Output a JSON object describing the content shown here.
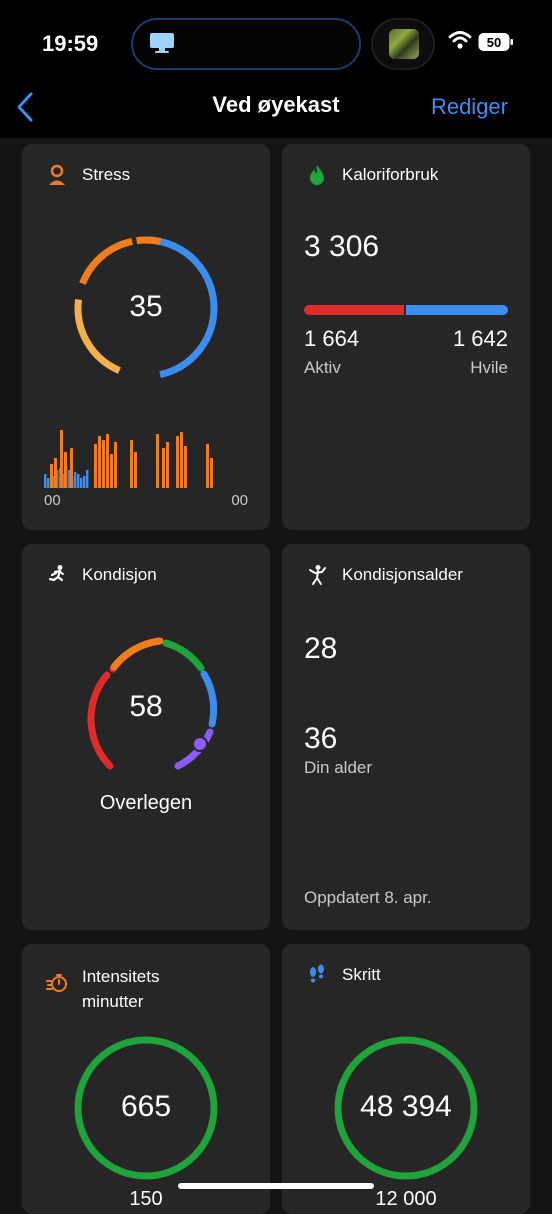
{
  "status_bar": {
    "time": "19:59",
    "battery": "50"
  },
  "header": {
    "title": "Ved øyekast",
    "edit_label": "Rediger"
  },
  "cards": {
    "stress": {
      "title": "Stress",
      "value": "35",
      "axis_start": "00",
      "axis_end": "00"
    },
    "calories": {
      "title": "Kaloriforbruk",
      "total": "3 306",
      "active_value": "1 664",
      "active_label": "Aktiv",
      "rest_value": "1 642",
      "rest_label": "Hvile"
    },
    "fitness": {
      "title": "Kondisjon",
      "value": "58",
      "level": "Overlegen"
    },
    "fitness_age": {
      "title": "Kondisjonsalder",
      "fitness_age": "28",
      "actual_age": "36",
      "actual_age_label": "Din alder",
      "updated": "Oppdatert 8. apr."
    },
    "intensity": {
      "title_line1": "Intensitets",
      "title_line2": "minutter",
      "value": "665",
      "goal": "150"
    },
    "steps": {
      "title": "Skritt",
      "value": "48 394",
      "goal": "12 000"
    }
  },
  "colors": {
    "accent": "#3b8ef0",
    "orange": "#f07c1e",
    "green": "#1fa33a",
    "red": "#e02b2b",
    "blue": "#3b8ef0",
    "purple": "#8b5cf6"
  }
}
